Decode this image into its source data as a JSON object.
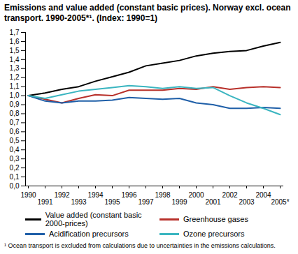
{
  "chart_data": {
    "type": "line",
    "title": "Emissions and value added (constant basic prices). Norway excl. ocean transport. 1990-2005*¹. (Index: 1990=1)",
    "caption": "¹ Ocean transport is excluded from calculations due to uncertainties in the emissions calculations.",
    "categories": [
      "1990",
      "1991",
      "1992",
      "1993",
      "1994",
      "1995",
      "1996",
      "1997",
      "1998",
      "1999",
      "2000",
      "2001",
      "2002",
      "2003",
      "2004",
      "2005*"
    ],
    "series": [
      {
        "name": "Value added (constant basic 2000-prices)",
        "color": "#000000",
        "values": [
          1.0,
          1.03,
          1.07,
          1.1,
          1.16,
          1.21,
          1.26,
          1.33,
          1.36,
          1.39,
          1.44,
          1.47,
          1.49,
          1.5,
          1.55,
          1.59
        ]
      },
      {
        "name": "Greenhouse gases",
        "color": "#b8302a",
        "values": [
          1.0,
          0.96,
          0.92,
          0.97,
          1.01,
          1.0,
          1.06,
          1.06,
          1.06,
          1.08,
          1.07,
          1.1,
          1.07,
          1.09,
          1.1,
          1.09
        ]
      },
      {
        "name": "Acidification precursors",
        "color": "#1f5fa8",
        "values": [
          1.0,
          0.94,
          0.92,
          0.94,
          0.94,
          0.95,
          0.98,
          0.97,
          0.96,
          0.97,
          0.92,
          0.9,
          0.86,
          0.86,
          0.87,
          0.86
        ]
      },
      {
        "name": "Ozone precursors",
        "color": "#3ab5c0",
        "values": [
          1.0,
          0.97,
          1.01,
          1.05,
          1.07,
          1.09,
          1.11,
          1.1,
          1.08,
          1.1,
          1.08,
          1.09,
          1.0,
          0.92,
          0.86,
          0.79
        ]
      }
    ],
    "ylim": [
      0,
      1.7
    ],
    "yticks": [
      {
        "value": 0,
        "label": "0,0"
      },
      {
        "value": 0.1,
        "label": "0,1"
      },
      {
        "value": 0.2,
        "label": "0,2"
      },
      {
        "value": 0.3,
        "label": "0,3"
      },
      {
        "value": 0.4,
        "label": "0,4"
      },
      {
        "value": 0.5,
        "label": "0,5"
      },
      {
        "value": 0.6,
        "label": "0,6"
      },
      {
        "value": 0.7,
        "label": "0,7"
      },
      {
        "value": 0.8,
        "label": "0,8"
      },
      {
        "value": 0.9,
        "label": "0,9"
      },
      {
        "value": 1.0,
        "label": "1,0"
      },
      {
        "value": 1.1,
        "label": "1,1"
      },
      {
        "value": 1.2,
        "label": "1,2"
      },
      {
        "value": 1.3,
        "label": "1,3"
      },
      {
        "value": 1.4,
        "label": "1,4"
      },
      {
        "value": 1.5,
        "label": "1,5"
      },
      {
        "value": 1.6,
        "label": "1,6"
      },
      {
        "value": 1.7,
        "label": "1,7"
      }
    ],
    "grid": false,
    "legend": "bottom"
  }
}
